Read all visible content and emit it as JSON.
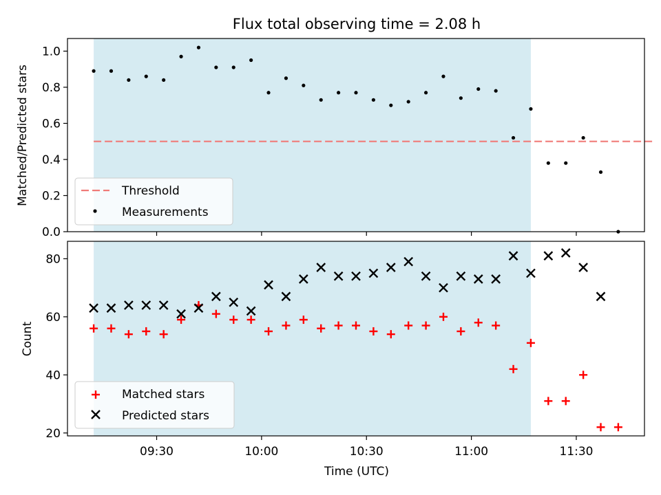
{
  "chart_data": [
    {
      "type": "scatter",
      "title": "Flux total observing time = 2.08 h",
      "xlabel": "",
      "ylabel": "Matched/Predicted stars",
      "ylim": [
        0,
        1.07
      ],
      "yticks": [
        "0.0",
        "0.2",
        "0.4",
        "0.6",
        "0.8",
        "1.0"
      ],
      "x_time_minutes_since_midnight": [
        552,
        557,
        562,
        567,
        572,
        577,
        582,
        587,
        592,
        597,
        602,
        607,
        612,
        617,
        622,
        627,
        632,
        637,
        642,
        647,
        652,
        657,
        662,
        667,
        672,
        677,
        682,
        687,
        692,
        697,
        702
      ],
      "shaded_interval": [
        "09:12",
        "11:17"
      ],
      "legend_position": "lower-left",
      "threshold": {
        "name": "Threshold",
        "value": 0.5,
        "x_range": [
          "09:12",
          "11:52"
        ],
        "color": "#f07b78"
      },
      "series": [
        {
          "name": "Measurements",
          "color": "#000000",
          "values": [
            0.89,
            0.89,
            0.84,
            0.86,
            0.84,
            0.97,
            1.02,
            0.91,
            0.91,
            0.95,
            0.77,
            0.85,
            0.81,
            0.73,
            0.77,
            0.77,
            0.73,
            0.7,
            0.72,
            0.77,
            0.86,
            0.74,
            0.79,
            0.78,
            0.52,
            0.68,
            0.38,
            0.38,
            0.52,
            0.33,
            0.0
          ]
        }
      ]
    },
    {
      "type": "scatter",
      "title": "",
      "xlabel": "Time (UTC)",
      "ylabel": "Count",
      "ylim": [
        19,
        86
      ],
      "yticks": [
        "20",
        "40",
        "60",
        "80"
      ],
      "xticks": [
        "09:30",
        "10:00",
        "10:30",
        "11:00",
        "11:30"
      ],
      "legend_position": "lower-left",
      "series": [
        {
          "name": "Matched stars",
          "marker": "plus",
          "color": "#ff0000",
          "values": [
            56,
            56,
            54,
            55,
            54,
            59,
            64,
            61,
            59,
            59,
            55,
            57,
            59,
            56,
            57,
            57,
            55,
            54,
            57,
            57,
            60,
            55,
            58,
            57,
            42,
            51,
            31,
            31,
            40,
            22,
            22
          ]
        },
        {
          "name": "Predicted stars",
          "marker": "x",
          "color": "#000000",
          "values": [
            63,
            63,
            64,
            64,
            64,
            61,
            63,
            67,
            65,
            62,
            71,
            67,
            73,
            77,
            74,
            74,
            75,
            77,
            79,
            74,
            70,
            74,
            73,
            73,
            81,
            75,
            81,
            82,
            77,
            67,
            null
          ]
        }
      ]
    }
  ]
}
